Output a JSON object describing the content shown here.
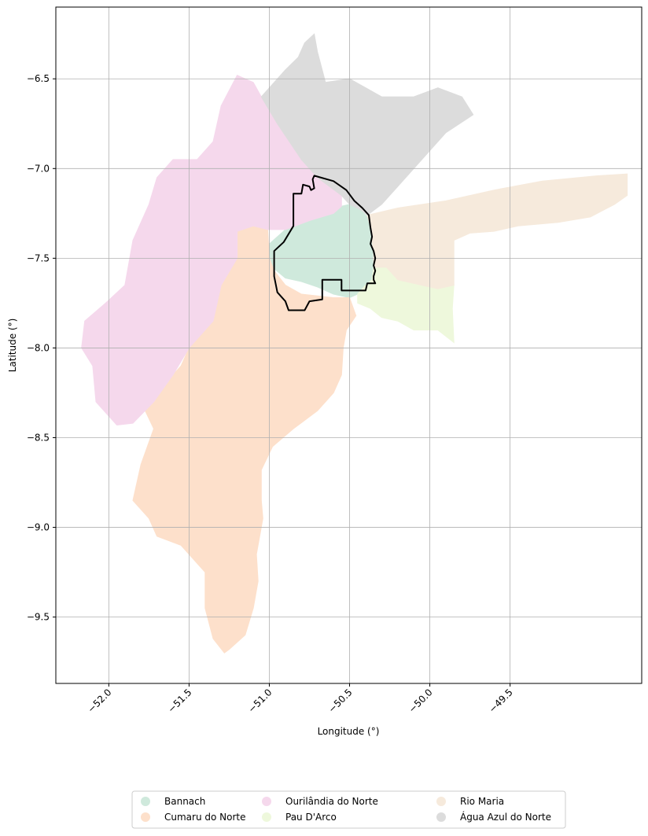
{
  "chart_data": {
    "type": "map",
    "xlabel": "Longitude (°)",
    "ylabel": "Latitude (°)",
    "xlim": [
      -52.33,
      -48.68
    ],
    "ylim": [
      -9.87,
      -6.1
    ],
    "xticks": [
      -52.0,
      -51.5,
      -51.0,
      -50.5,
      -50.0,
      -49.5
    ],
    "xtick_labels": [
      "−52.0",
      "−51.5",
      "−51.0",
      "−50.5",
      "−50.0",
      "−49.5"
    ],
    "yticks": [
      -6.5,
      -7.0,
      -7.5,
      -8.0,
      -8.5,
      -9.0,
      -9.5
    ],
    "ytick_labels": [
      "−6.5",
      "−7.0",
      "−7.5",
      "−8.0",
      "−8.5",
      "−9.0",
      "−9.5"
    ],
    "grid": true,
    "legend_position": "bottom-center",
    "legend_columns": 3,
    "regions": [
      {
        "name": "Bannach",
        "color": "#cfe9dc",
        "polygon": [
          [
            -51.0,
            -7.42
          ],
          [
            -50.9,
            -7.34
          ],
          [
            -50.75,
            -7.29
          ],
          [
            -50.6,
            -7.25
          ],
          [
            -50.55,
            -7.21
          ],
          [
            -50.5,
            -7.2
          ],
          [
            -50.43,
            -7.23
          ],
          [
            -50.39,
            -7.27
          ],
          [
            -50.37,
            -7.33
          ],
          [
            -50.36,
            -7.4
          ],
          [
            -50.35,
            -7.48
          ],
          [
            -50.35,
            -7.55
          ],
          [
            -50.36,
            -7.62
          ],
          [
            -50.4,
            -7.65
          ],
          [
            -50.45,
            -7.7
          ],
          [
            -50.5,
            -7.72
          ],
          [
            -50.6,
            -7.7
          ],
          [
            -50.7,
            -7.66
          ],
          [
            -50.8,
            -7.63
          ],
          [
            -50.9,
            -7.61
          ],
          [
            -50.98,
            -7.55
          ],
          [
            -51.01,
            -7.5
          ]
        ]
      },
      {
        "name": "Cumaru do Norte",
        "color": "#fde0cb",
        "polygon": [
          [
            -51.2,
            -7.35
          ],
          [
            -51.1,
            -7.32
          ],
          [
            -51.01,
            -7.34
          ],
          [
            -51.0,
            -7.5
          ],
          [
            -50.97,
            -7.57
          ],
          [
            -50.9,
            -7.65
          ],
          [
            -50.8,
            -7.7
          ],
          [
            -50.6,
            -7.72
          ],
          [
            -50.5,
            -7.72
          ],
          [
            -50.46,
            -7.82
          ],
          [
            -50.52,
            -7.9
          ],
          [
            -50.54,
            -8.0
          ],
          [
            -50.55,
            -8.15
          ],
          [
            -50.6,
            -8.25
          ],
          [
            -50.7,
            -8.35
          ],
          [
            -50.85,
            -8.45
          ],
          [
            -50.98,
            -8.55
          ],
          [
            -51.05,
            -8.68
          ],
          [
            -51.05,
            -8.85
          ],
          [
            -51.04,
            -8.95
          ],
          [
            -51.08,
            -9.15
          ],
          [
            -51.07,
            -9.3
          ],
          [
            -51.1,
            -9.45
          ],
          [
            -51.15,
            -9.6
          ],
          [
            -51.25,
            -9.68
          ],
          [
            -51.28,
            -9.7
          ],
          [
            -51.35,
            -9.62
          ],
          [
            -51.4,
            -9.45
          ],
          [
            -51.4,
            -9.25
          ],
          [
            -51.55,
            -9.1
          ],
          [
            -51.7,
            -9.05
          ],
          [
            -51.75,
            -8.95
          ],
          [
            -51.85,
            -8.85
          ],
          [
            -51.8,
            -8.65
          ],
          [
            -51.72,
            -8.45
          ],
          [
            -51.8,
            -8.3
          ],
          [
            -51.65,
            -8.2
          ],
          [
            -51.55,
            -8.1
          ],
          [
            -51.5,
            -8.0
          ],
          [
            -51.35,
            -7.85
          ],
          [
            -51.3,
            -7.65
          ],
          [
            -51.2,
            -7.5
          ]
        ]
      },
      {
        "name": "Ourilândia do Norte",
        "color": "#f5d8ec",
        "polygon": [
          [
            -51.2,
            -6.48
          ],
          [
            -51.1,
            -6.52
          ],
          [
            -51.05,
            -6.6
          ],
          [
            -50.95,
            -6.75
          ],
          [
            -50.8,
            -6.95
          ],
          [
            -50.7,
            -7.05
          ],
          [
            -50.55,
            -7.15
          ],
          [
            -50.55,
            -7.21
          ],
          [
            -50.6,
            -7.25
          ],
          [
            -50.75,
            -7.29
          ],
          [
            -50.9,
            -7.34
          ],
          [
            -51.01,
            -7.34
          ],
          [
            -51.1,
            -7.32
          ],
          [
            -51.2,
            -7.35
          ],
          [
            -51.2,
            -7.5
          ],
          [
            -51.3,
            -7.65
          ],
          [
            -51.35,
            -7.85
          ],
          [
            -51.5,
            -8.0
          ],
          [
            -51.6,
            -8.15
          ],
          [
            -51.72,
            -8.3
          ],
          [
            -51.85,
            -8.42
          ],
          [
            -51.95,
            -8.43
          ],
          [
            -52.08,
            -8.3
          ],
          [
            -52.1,
            -8.1
          ],
          [
            -52.17,
            -8.0
          ],
          [
            -52.15,
            -7.85
          ],
          [
            -52.02,
            -7.75
          ],
          [
            -51.9,
            -7.65
          ],
          [
            -51.85,
            -7.4
          ],
          [
            -51.75,
            -7.2
          ],
          [
            -51.7,
            -7.05
          ],
          [
            -51.6,
            -6.95
          ],
          [
            -51.45,
            -6.95
          ],
          [
            -51.35,
            -6.85
          ],
          [
            -51.3,
            -6.65
          ]
        ]
      },
      {
        "name": "Pau D'Arco",
        "color": "#eef8dc",
        "polygon": [
          [
            -50.35,
            -7.55
          ],
          [
            -50.27,
            -7.55
          ],
          [
            -50.2,
            -7.62
          ],
          [
            -50.05,
            -7.65
          ],
          [
            -49.95,
            -7.67
          ],
          [
            -49.85,
            -7.65
          ],
          [
            -49.86,
            -7.78
          ],
          [
            -49.85,
            -7.97
          ],
          [
            -49.95,
            -7.9
          ],
          [
            -50.1,
            -7.9
          ],
          [
            -50.2,
            -7.85
          ],
          [
            -50.3,
            -7.83
          ],
          [
            -50.37,
            -7.78
          ],
          [
            -50.45,
            -7.75
          ],
          [
            -50.45,
            -7.7
          ],
          [
            -50.4,
            -7.65
          ],
          [
            -50.36,
            -7.62
          ]
        ]
      },
      {
        "name": "Rio Maria",
        "color": "#f6eadc",
        "polygon": [
          [
            -50.39,
            -7.26
          ],
          [
            -50.2,
            -7.22
          ],
          [
            -49.9,
            -7.18
          ],
          [
            -49.6,
            -7.12
          ],
          [
            -49.3,
            -7.07
          ],
          [
            -48.95,
            -7.04
          ],
          [
            -48.77,
            -7.03
          ],
          [
            -48.77,
            -7.15
          ],
          [
            -48.85,
            -7.2
          ],
          [
            -49.0,
            -7.27
          ],
          [
            -49.2,
            -7.3
          ],
          [
            -49.45,
            -7.32
          ],
          [
            -49.6,
            -7.35
          ],
          [
            -49.75,
            -7.36
          ],
          [
            -49.85,
            -7.4
          ],
          [
            -49.85,
            -7.65
          ],
          [
            -49.95,
            -7.67
          ],
          [
            -50.05,
            -7.65
          ],
          [
            -50.2,
            -7.62
          ],
          [
            -50.27,
            -7.55
          ],
          [
            -50.35,
            -7.55
          ],
          [
            -50.35,
            -7.48
          ],
          [
            -50.36,
            -7.4
          ],
          [
            -50.37,
            -7.33
          ]
        ]
      },
      {
        "name": "Água Azul do Norte",
        "color": "#dcdcdc",
        "polygon": [
          [
            -50.9,
            -6.45
          ],
          [
            -50.82,
            -6.38
          ],
          [
            -50.78,
            -6.3
          ],
          [
            -50.72,
            -6.25
          ],
          [
            -50.7,
            -6.35
          ],
          [
            -50.65,
            -6.52
          ],
          [
            -50.5,
            -6.5
          ],
          [
            -50.3,
            -6.6
          ],
          [
            -50.1,
            -6.6
          ],
          [
            -49.95,
            -6.55
          ],
          [
            -49.8,
            -6.6
          ],
          [
            -49.73,
            -6.7
          ],
          [
            -49.9,
            -6.8
          ],
          [
            -50.1,
            -7.0
          ],
          [
            -50.3,
            -7.2
          ],
          [
            -50.39,
            -7.26
          ],
          [
            -50.43,
            -7.23
          ],
          [
            -50.5,
            -7.2
          ],
          [
            -50.55,
            -7.15
          ],
          [
            -50.7,
            -7.05
          ],
          [
            -50.8,
            -6.95
          ],
          [
            -50.95,
            -6.75
          ],
          [
            -51.05,
            -6.6
          ]
        ]
      }
    ],
    "highlight": {
      "name": "Bannach",
      "polygon": [
        [
          -50.72,
          -7.04
        ],
        [
          -50.6,
          -7.07
        ],
        [
          -50.52,
          -7.12
        ],
        [
          -50.47,
          -7.18
        ],
        [
          -50.42,
          -7.22
        ],
        [
          -50.38,
          -7.26
        ],
        [
          -50.37,
          -7.33
        ],
        [
          -50.36,
          -7.38
        ],
        [
          -50.37,
          -7.42
        ],
        [
          -50.35,
          -7.46
        ],
        [
          -50.34,
          -7.5
        ],
        [
          -50.35,
          -7.54
        ],
        [
          -50.34,
          -7.57
        ],
        [
          -50.35,
          -7.6
        ],
        [
          -50.35,
          -7.62
        ],
        [
          -50.34,
          -7.64
        ],
        [
          -50.39,
          -7.64
        ],
        [
          -50.4,
          -7.68
        ],
        [
          -50.55,
          -7.68
        ],
        [
          -50.55,
          -7.62
        ],
        [
          -50.67,
          -7.62
        ],
        [
          -50.67,
          -7.73
        ],
        [
          -50.75,
          -7.74
        ],
        [
          -50.78,
          -7.79
        ],
        [
          -50.88,
          -7.79
        ],
        [
          -50.9,
          -7.74
        ],
        [
          -50.95,
          -7.69
        ],
        [
          -50.97,
          -7.6
        ],
        [
          -50.97,
          -7.46
        ],
        [
          -50.91,
          -7.41
        ],
        [
          -50.85,
          -7.32
        ],
        [
          -50.85,
          -7.14
        ],
        [
          -50.8,
          -7.14
        ],
        [
          -50.79,
          -7.09
        ],
        [
          -50.75,
          -7.1
        ],
        [
          -50.74,
          -7.12
        ],
        [
          -50.72,
          -7.11
        ],
        [
          -50.73,
          -7.06
        ]
      ]
    }
  }
}
